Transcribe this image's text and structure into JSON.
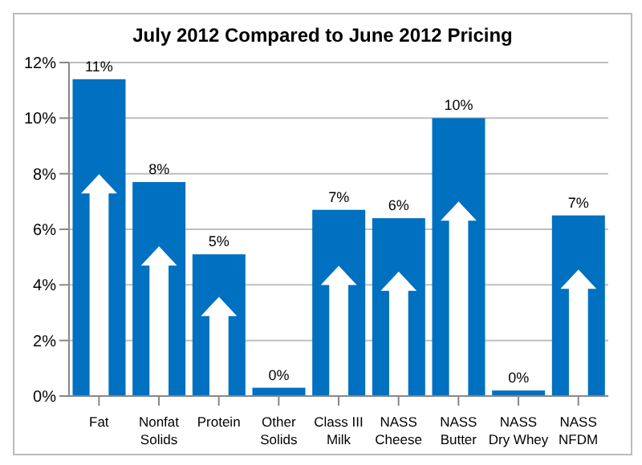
{
  "chart_data": {
    "type": "bar",
    "title": "July 2012 Compared to June 2012 Pricing",
    "categories": [
      "Fat",
      "Nonfat Solids",
      "Protein",
      "Other Solids",
      "Class III Milk",
      "NASS Cheese",
      "NASS Butter",
      "NASS Dry Whey",
      "NASS NFDM"
    ],
    "values": [
      11.4,
      7.7,
      5.1,
      0.3,
      6.7,
      6.4,
      10.0,
      0.2,
      6.5
    ],
    "value_labels": [
      "11%",
      "8%",
      "5%",
      "0%",
      "7%",
      "6%",
      "10%",
      "0%",
      "7%"
    ],
    "color": "#0070c0",
    "ylim": [
      0,
      12
    ],
    "yticks": [
      {
        "value": 0,
        "label": "0%"
      },
      {
        "value": 2,
        "label": "2%"
      },
      {
        "value": 4,
        "label": "4%"
      },
      {
        "value": 6,
        "label": "6%"
      },
      {
        "value": 8,
        "label": "8%"
      },
      {
        "value": 10,
        "label": "10%"
      },
      {
        "value": 12,
        "label": "12%"
      }
    ],
    "grid": "y",
    "legend": false
  }
}
